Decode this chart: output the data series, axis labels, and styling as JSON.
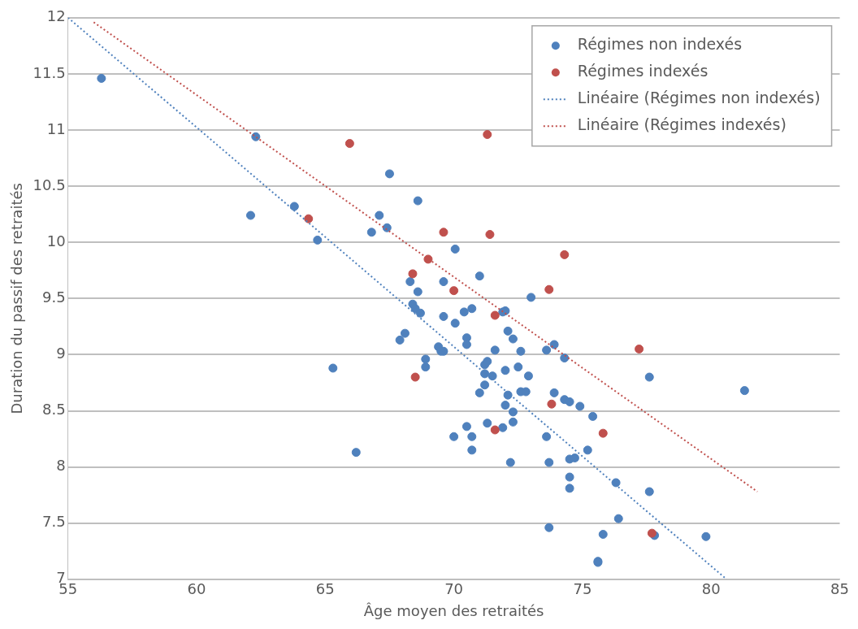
{
  "chart_data": {
    "type": "scatter",
    "xlabel": "Âge moyen des retraités",
    "ylabel": "Duration du passif des retraités",
    "xlim": [
      55,
      85
    ],
    "xticks": [
      55,
      60,
      65,
      70,
      75,
      80,
      85
    ],
    "ylim": [
      7,
      12
    ],
    "yticks": [
      7,
      {
        "value": 7.5,
        "label": "7.5"
      },
      8,
      {
        "value": 8.5,
        "label": "8.5"
      },
      9,
      {
        "value": 9.5,
        "label": "9.5"
      },
      10,
      {
        "value": 10.5,
        "label": "10.5"
      },
      11,
      {
        "value": 11.5,
        "label": "11.5"
      },
      12
    ],
    "grid": "y",
    "legend": "top right",
    "marker": "circle",
    "series": [
      {
        "name": "Régimes non indexés",
        "color": "#4f81bd",
        "x": [
          56.3,
          62.3,
          62.1,
          63.8,
          64.7,
          65.3,
          66.2,
          66.8,
          67.1,
          67.4,
          67.5,
          68.6,
          67.9,
          68.1,
          68.3,
          68.4,
          68.5,
          68.6,
          68.7,
          69.6,
          70.05,
          69.6,
          69.6,
          71.0,
          73.0,
          70.4,
          70.7,
          70.05,
          72.0,
          71.9,
          69.4,
          69.5,
          70.5,
          70.5,
          72.1,
          72.3,
          71.6,
          72.6,
          73.6,
          73.9,
          74.3,
          68.9,
          68.9,
          71.2,
          71.3,
          71.2,
          71.5,
          72.0,
          72.5,
          72.9,
          71.2,
          71.0,
          72.1,
          72.6,
          72.8,
          73.9,
          74.3,
          74.5,
          74.9,
          75.4,
          72.0,
          72.3,
          72.3,
          71.9,
          71.3,
          70.5,
          70.0,
          70.7,
          70.7,
          72.2,
          73.6,
          73.7,
          75.2,
          74.5,
          74.7,
          74.5,
          74.5,
          76.3,
          76.4,
          73.7,
          75.8,
          75.6,
          75.6,
          77.6,
          77.6,
          77.8,
          81.3,
          79.8
        ],
        "values": [
          11.46,
          10.94,
          10.24,
          10.32,
          10.02,
          8.88,
          8.13,
          10.09,
          10.24,
          10.13,
          10.61,
          10.37,
          9.13,
          9.19,
          9.65,
          9.45,
          9.41,
          9.56,
          9.37,
          9.65,
          9.94,
          9.34,
          9.03,
          9.7,
          9.51,
          9.38,
          9.41,
          9.28,
          9.39,
          9.38,
          9.07,
          9.03,
          9.15,
          9.09,
          9.21,
          9.14,
          9.04,
          9.03,
          9.04,
          9.09,
          8.97,
          8.96,
          8.89,
          8.91,
          8.94,
          8.83,
          8.81,
          8.86,
          8.89,
          8.81,
          8.73,
          8.66,
          8.64,
          8.67,
          8.67,
          8.66,
          8.6,
          8.58,
          8.54,
          8.45,
          8.55,
          8.49,
          8.4,
          8.35,
          8.39,
          8.36,
          8.27,
          8.27,
          8.15,
          8.04,
          8.27,
          8.04,
          8.15,
          8.07,
          8.08,
          7.91,
          7.81,
          7.86,
          7.54,
          7.46,
          7.4,
          7.15,
          7.16,
          8.8,
          7.78,
          7.39,
          8.68,
          7.38
        ]
      },
      {
        "name": "Régimes indexés",
        "color": "#c0504d",
        "x": [
          64.35,
          65.95,
          71.3,
          69.6,
          71.4,
          74.3,
          69.0,
          68.4,
          70.0,
          73.7,
          71.6,
          77.2,
          68.5,
          71.6,
          73.8,
          75.8,
          77.7
        ],
        "values": [
          10.21,
          10.88,
          10.96,
          10.09,
          10.07,
          9.89,
          9.85,
          9.72,
          9.57,
          9.58,
          9.35,
          9.05,
          8.8,
          8.33,
          8.56,
          8.3,
          7.41
        ]
      },
      {
        "name": "Linéaire (Régimes non indexés)",
        "type": "line",
        "line_style": "dotted",
        "marker": "none",
        "color": "#4f81bd",
        "x": [
          55,
          80.6
        ],
        "values": [
          12,
          7
        ]
      },
      {
        "name": "Linéaire (Régimes indexés)",
        "type": "line",
        "line_style": "dotted",
        "marker": "none",
        "color": "#c0504d",
        "x": [
          56,
          81.8
        ],
        "values": [
          11.96,
          7.78
        ]
      }
    ]
  }
}
